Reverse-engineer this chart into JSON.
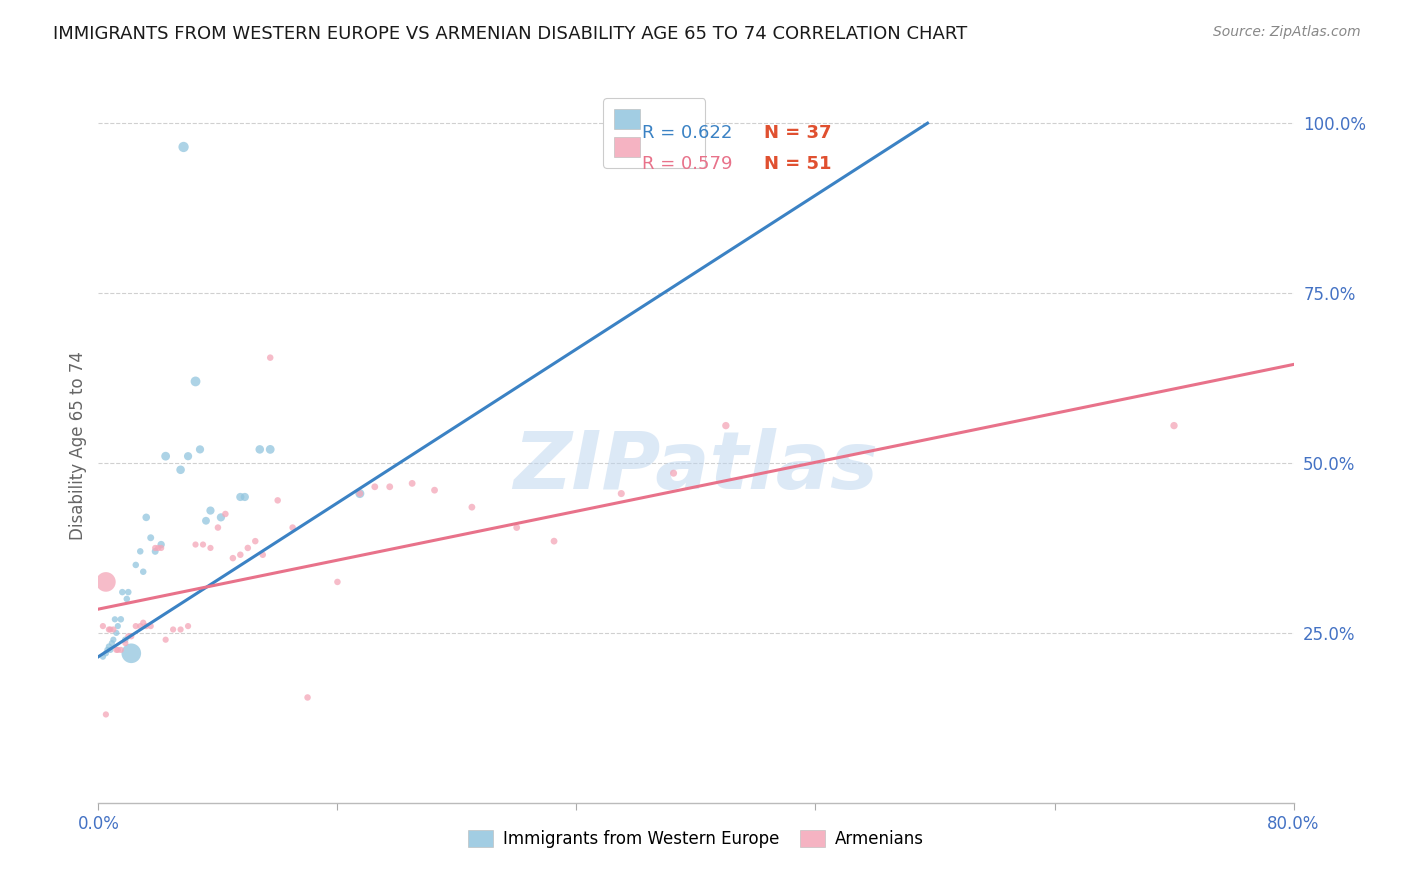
{
  "title": "IMMIGRANTS FROM WESTERN EUROPE VS ARMENIAN DISABILITY AGE 65 TO 74 CORRELATION CHART",
  "source": "Source: ZipAtlas.com",
  "ylabel_label": "Disability Age 65 to 74",
  "xlim": [
    0.0,
    0.8
  ],
  "ylim": [
    0.0,
    1.05
  ],
  "ytick_labels_right": [
    "100.0%",
    "75.0%",
    "50.0%",
    "25.0%"
  ],
  "ytick_vals_right": [
    1.0,
    0.75,
    0.5,
    0.25
  ],
  "blue_color": "#92c5de",
  "pink_color": "#f4a6b8",
  "blue_line_color": "#3b82c4",
  "pink_line_color": "#e8728a",
  "legend_R_blue": "R = 0.622",
  "legend_N_blue": "N = 37",
  "legend_R_blue_color": "#3b82c4",
  "legend_N_blue_color": "#e05030",
  "legend_R_pink": "R = 0.579",
  "legend_N_pink": "N = 51",
  "legend_R_pink_color": "#e8728a",
  "legend_N_pink_color": "#e05030",
  "title_color": "#1a1a1a",
  "axis_label_color": "#4472c4",
  "watermark": "ZIPatlas",
  "blue_scatter_x": [
    0.003,
    0.005,
    0.006,
    0.007,
    0.008,
    0.009,
    0.01,
    0.011,
    0.012,
    0.013,
    0.015,
    0.016,
    0.018,
    0.019,
    0.02,
    0.022,
    0.025,
    0.028,
    0.03,
    0.032,
    0.035,
    0.038,
    0.042,
    0.045,
    0.055,
    0.057,
    0.06,
    0.065,
    0.068,
    0.072,
    0.075,
    0.082,
    0.095,
    0.098,
    0.108,
    0.115,
    0.175
  ],
  "blue_scatter_y": [
    0.215,
    0.22,
    0.225,
    0.23,
    0.225,
    0.235,
    0.24,
    0.27,
    0.25,
    0.26,
    0.27,
    0.31,
    0.24,
    0.3,
    0.31,
    0.22,
    0.35,
    0.37,
    0.34,
    0.42,
    0.39,
    0.37,
    0.38,
    0.51,
    0.49,
    0.965,
    0.51,
    0.62,
    0.52,
    0.415,
    0.43,
    0.42,
    0.45,
    0.45,
    0.52,
    0.52,
    0.455
  ],
  "blue_scatter_size": [
    20,
    20,
    20,
    20,
    20,
    20,
    20,
    20,
    20,
    20,
    22,
    22,
    22,
    22,
    22,
    200,
    22,
    22,
    22,
    30,
    25,
    25,
    28,
    40,
    38,
    55,
    35,
    50,
    35,
    32,
    35,
    35,
    35,
    35,
    38,
    40,
    42
  ],
  "pink_scatter_x": [
    0.003,
    0.005,
    0.007,
    0.008,
    0.01,
    0.012,
    0.013,
    0.015,
    0.018,
    0.02,
    0.022,
    0.025,
    0.028,
    0.03,
    0.032,
    0.035,
    0.038,
    0.04,
    0.042,
    0.045,
    0.05,
    0.055,
    0.06,
    0.065,
    0.07,
    0.075,
    0.08,
    0.085,
    0.09,
    0.095,
    0.1,
    0.105,
    0.11,
    0.115,
    0.12,
    0.13,
    0.14,
    0.16,
    0.175,
    0.185,
    0.195,
    0.21,
    0.225,
    0.25,
    0.28,
    0.305,
    0.35,
    0.385,
    0.42,
    0.72,
    0.005
  ],
  "pink_scatter_y": [
    0.26,
    0.325,
    0.255,
    0.255,
    0.255,
    0.225,
    0.225,
    0.225,
    0.235,
    0.245,
    0.245,
    0.26,
    0.26,
    0.265,
    0.26,
    0.26,
    0.375,
    0.375,
    0.375,
    0.24,
    0.255,
    0.255,
    0.26,
    0.38,
    0.38,
    0.375,
    0.405,
    0.425,
    0.36,
    0.365,
    0.375,
    0.385,
    0.365,
    0.655,
    0.445,
    0.405,
    0.155,
    0.325,
    0.455,
    0.465,
    0.465,
    0.47,
    0.46,
    0.435,
    0.405,
    0.385,
    0.455,
    0.485,
    0.555,
    0.555,
    0.13
  ],
  "pink_scatter_size": [
    20,
    200,
    20,
    20,
    20,
    20,
    20,
    20,
    20,
    20,
    20,
    20,
    20,
    20,
    20,
    20,
    20,
    20,
    20,
    20,
    20,
    20,
    20,
    20,
    20,
    20,
    22,
    22,
    22,
    22,
    22,
    22,
    22,
    22,
    22,
    22,
    22,
    22,
    24,
    24,
    24,
    24,
    24,
    24,
    24,
    24,
    26,
    26,
    28,
    28,
    20
  ],
  "blue_line_x": [
    0.0,
    0.555
  ],
  "blue_line_y": [
    0.215,
    1.0
  ],
  "pink_line_x": [
    0.0,
    0.8
  ],
  "pink_line_y": [
    0.285,
    0.645
  ],
  "grid_color": "#d0d0d0",
  "background_color": "#ffffff"
}
